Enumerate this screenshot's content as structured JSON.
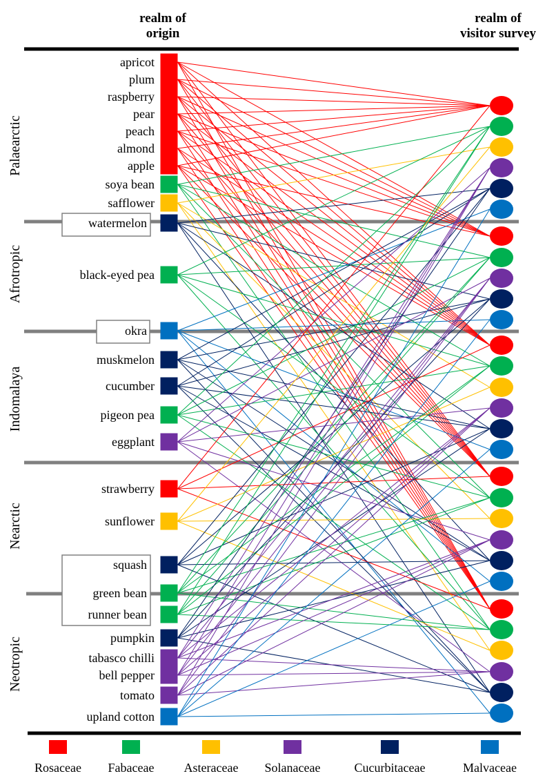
{
  "headers": {
    "origin": [
      "realm of",
      "origin"
    ],
    "visitor": [
      "realm of",
      "visitor survey"
    ]
  },
  "families": [
    {
      "key": "ros",
      "name": "Rosaceae",
      "color": "#ff0000"
    },
    {
      "key": "fab",
      "name": "Fabaceae",
      "color": "#00b050"
    },
    {
      "key": "ast",
      "name": "Asteraceae",
      "color": "#ffc000"
    },
    {
      "key": "sol",
      "name": "Solanaceae",
      "color": "#7030a0"
    },
    {
      "key": "cuc",
      "name": "Cucurbitaceae",
      "color": "#002060"
    },
    {
      "key": "mal",
      "name": "Malvaceae",
      "color": "#0070c0"
    }
  ],
  "realms": [
    "Palaearctic",
    "Afrotropic",
    "Indomalaya",
    "Nearctic",
    "Neotropic"
  ],
  "crops": [
    {
      "name": "apricot",
      "family": "ros",
      "origin": "Palaearctic"
    },
    {
      "name": "plum",
      "family": "ros",
      "origin": "Palaearctic"
    },
    {
      "name": "raspberry",
      "family": "ros",
      "origin": "Palaearctic"
    },
    {
      "name": "pear",
      "family": "ros",
      "origin": "Palaearctic"
    },
    {
      "name": "peach",
      "family": "ros",
      "origin": "Palaearctic"
    },
    {
      "name": "almond",
      "family": "ros",
      "origin": "Palaearctic"
    },
    {
      "name": "apple",
      "family": "ros",
      "origin": "Palaearctic"
    },
    {
      "name": "soya bean",
      "family": "fab",
      "origin": "Palaearctic"
    },
    {
      "name": "safflower",
      "family": "ast",
      "origin": "Palaearctic"
    },
    {
      "name": "watermelon",
      "family": "cuc",
      "origin": "Afrotropic",
      "boxed": true
    },
    {
      "name": "black-eyed pea",
      "family": "fab",
      "origin": "Afrotropic"
    },
    {
      "name": "okra",
      "family": "mal",
      "origin": "Indomalaya",
      "boxed": true
    },
    {
      "name": "muskmelon",
      "family": "cuc",
      "origin": "Indomalaya"
    },
    {
      "name": "cucumber",
      "family": "cuc",
      "origin": "Indomalaya"
    },
    {
      "name": "pigeon pea",
      "family": "fab",
      "origin": "Indomalaya"
    },
    {
      "name": "eggplant",
      "family": "sol",
      "origin": "Indomalaya"
    },
    {
      "name": "strawberry",
      "family": "ros",
      "origin": "Nearctic"
    },
    {
      "name": "sunflower",
      "family": "ast",
      "origin": "Nearctic"
    },
    {
      "name": "squash",
      "family": "cuc",
      "origin": "Nearctic",
      "boxed": true
    },
    {
      "name": "green bean",
      "family": "fab",
      "origin": "Neotropic",
      "boxed": true
    },
    {
      "name": "runner bean",
      "family": "fab",
      "origin": "Neotropic",
      "boxed": true
    },
    {
      "name": "pumpkin",
      "family": "cuc",
      "origin": "Neotropic"
    },
    {
      "name": "tabasco chilli",
      "family": "sol",
      "origin": "Neotropic"
    },
    {
      "name": "bell pepper",
      "family": "sol",
      "origin": "Neotropic"
    },
    {
      "name": "tomato",
      "family": "sol",
      "origin": "Neotropic"
    },
    {
      "name": "upland cotton",
      "family": "mal",
      "origin": "Neotropic"
    }
  ],
  "nodes": [
    {
      "realm": "Palaearctic",
      "family": "ros"
    },
    {
      "realm": "Palaearctic",
      "family": "fab"
    },
    {
      "realm": "Palaearctic",
      "family": "ast"
    },
    {
      "realm": "Palaearctic",
      "family": "sol"
    },
    {
      "realm": "Palaearctic",
      "family": "cuc"
    },
    {
      "realm": "Palaearctic",
      "family": "mal"
    },
    {
      "realm": "Afrotropic",
      "family": "ros"
    },
    {
      "realm": "Afrotropic",
      "family": "fab"
    },
    {
      "realm": "Afrotropic",
      "family": "sol"
    },
    {
      "realm": "Afrotropic",
      "family": "cuc"
    },
    {
      "realm": "Afrotropic",
      "family": "mal"
    },
    {
      "realm": "Indomalaya",
      "family": "ros"
    },
    {
      "realm": "Indomalaya",
      "family": "fab"
    },
    {
      "realm": "Indomalaya",
      "family": "ast"
    },
    {
      "realm": "Indomalaya",
      "family": "sol"
    },
    {
      "realm": "Indomalaya",
      "family": "cuc"
    },
    {
      "realm": "Indomalaya",
      "family": "mal"
    },
    {
      "realm": "Nearctic",
      "family": "ros"
    },
    {
      "realm": "Nearctic",
      "family": "fab"
    },
    {
      "realm": "Nearctic",
      "family": "ast"
    },
    {
      "realm": "Nearctic",
      "family": "sol"
    },
    {
      "realm": "Nearctic",
      "family": "cuc"
    },
    {
      "realm": "Nearctic",
      "family": "mal"
    },
    {
      "realm": "Neotropic",
      "family": "ros"
    },
    {
      "realm": "Neotropic",
      "family": "fab"
    },
    {
      "realm": "Neotropic",
      "family": "ast"
    },
    {
      "realm": "Neotropic",
      "family": "sol"
    },
    {
      "realm": "Neotropic",
      "family": "cuc"
    },
    {
      "realm": "Neotropic",
      "family": "mal"
    }
  ],
  "links": [
    [
      0,
      0
    ],
    [
      0,
      6
    ],
    [
      0,
      11
    ],
    [
      0,
      17
    ],
    [
      0,
      23
    ],
    [
      1,
      0
    ],
    [
      1,
      6
    ],
    [
      1,
      11
    ],
    [
      1,
      17
    ],
    [
      1,
      23
    ],
    [
      2,
      0
    ],
    [
      2,
      6
    ],
    [
      2,
      11
    ],
    [
      2,
      17
    ],
    [
      2,
      23
    ],
    [
      3,
      0
    ],
    [
      3,
      6
    ],
    [
      3,
      11
    ],
    [
      3,
      17
    ],
    [
      3,
      23
    ],
    [
      4,
      0
    ],
    [
      4,
      6
    ],
    [
      4,
      11
    ],
    [
      4,
      17
    ],
    [
      4,
      23
    ],
    [
      5,
      0
    ],
    [
      5,
      11
    ],
    [
      5,
      17
    ],
    [
      5,
      23
    ],
    [
      6,
      0
    ],
    [
      6,
      6
    ],
    [
      6,
      11
    ],
    [
      6,
      17
    ],
    [
      6,
      23
    ],
    [
      7,
      1
    ],
    [
      7,
      7
    ],
    [
      7,
      12
    ],
    [
      7,
      18
    ],
    [
      7,
      24
    ],
    [
      8,
      2
    ],
    [
      8,
      13
    ],
    [
      8,
      19
    ],
    [
      8,
      25
    ],
    [
      9,
      4
    ],
    [
      9,
      9
    ],
    [
      9,
      15
    ],
    [
      9,
      21
    ],
    [
      9,
      27
    ],
    [
      10,
      1
    ],
    [
      10,
      7
    ],
    [
      10,
      12
    ],
    [
      10,
      18
    ],
    [
      10,
      24
    ],
    [
      11,
      5
    ],
    [
      11,
      10
    ],
    [
      11,
      16
    ],
    [
      11,
      22
    ],
    [
      11,
      28
    ],
    [
      12,
      4
    ],
    [
      12,
      9
    ],
    [
      12,
      15
    ],
    [
      12,
      21
    ],
    [
      12,
      27
    ],
    [
      13,
      4
    ],
    [
      13,
      9
    ],
    [
      13,
      15
    ],
    [
      13,
      21
    ],
    [
      13,
      27
    ],
    [
      14,
      1
    ],
    [
      14,
      7
    ],
    [
      14,
      12
    ],
    [
      14,
      18
    ],
    [
      14,
      24
    ],
    [
      15,
      3
    ],
    [
      15,
      8
    ],
    [
      15,
      14
    ],
    [
      15,
      20
    ],
    [
      15,
      26
    ],
    [
      16,
      0
    ],
    [
      16,
      11
    ],
    [
      16,
      17
    ],
    [
      16,
      23
    ],
    [
      17,
      2
    ],
    [
      17,
      13
    ],
    [
      17,
      19
    ],
    [
      17,
      25
    ],
    [
      18,
      4
    ],
    [
      18,
      9
    ],
    [
      18,
      15
    ],
    [
      18,
      21
    ],
    [
      18,
      27
    ],
    [
      19,
      1
    ],
    [
      19,
      7
    ],
    [
      19,
      12
    ],
    [
      19,
      18
    ],
    [
      19,
      24
    ],
    [
      20,
      1
    ],
    [
      20,
      7
    ],
    [
      20,
      12
    ],
    [
      20,
      18
    ],
    [
      20,
      24
    ],
    [
      21,
      4
    ],
    [
      21,
      9
    ],
    [
      21,
      15
    ],
    [
      21,
      21
    ],
    [
      21,
      27
    ],
    [
      22,
      3
    ],
    [
      22,
      8
    ],
    [
      22,
      14
    ],
    [
      22,
      20
    ],
    [
      22,
      26
    ],
    [
      23,
      3
    ],
    [
      23,
      8
    ],
    [
      23,
      14
    ],
    [
      23,
      20
    ],
    [
      23,
      26
    ],
    [
      24,
      3
    ],
    [
      24,
      8
    ],
    [
      24,
      14
    ],
    [
      24,
      20
    ],
    [
      24,
      26
    ],
    [
      25,
      5
    ],
    [
      25,
      10
    ],
    [
      25,
      16
    ],
    [
      25,
      22
    ],
    [
      25,
      28
    ]
  ]
}
